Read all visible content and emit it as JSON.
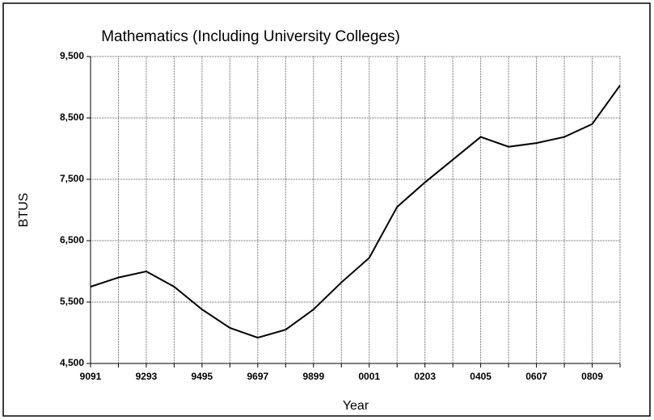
{
  "chart_data": {
    "type": "line",
    "title": "Mathematics (Including University Colleges)",
    "x_label": "Year",
    "y_label": "BTUS",
    "categories": [
      "9091",
      null,
      "9293",
      null,
      "9495",
      null,
      "9697",
      null,
      "9899",
      null,
      "0001",
      null,
      "0203",
      null,
      "0405",
      null,
      "0607",
      null,
      "0809",
      null
    ],
    "series": [
      {
        "name": "BTUS",
        "color": "#000000",
        "values": [
          5750,
          5900,
          6000,
          5750,
          5380,
          5080,
          4920,
          5050,
          5380,
          5820,
          6220,
          7050,
          7450,
          7820,
          8190,
          8030,
          8090,
          8190,
          8400,
          9030
        ]
      }
    ],
    "ylim": [
      4500,
      9500
    ],
    "yticks": [
      {
        "value": 4500,
        "label": "4,500"
      },
      {
        "value": 5500,
        "label": "5,500"
      },
      {
        "value": 6500,
        "label": "6,500"
      },
      {
        "value": 7500,
        "label": "7,500"
      },
      {
        "value": 8500,
        "label": "8,500"
      },
      {
        "value": 9500,
        "label": "9,500"
      }
    ],
    "grid": true
  }
}
